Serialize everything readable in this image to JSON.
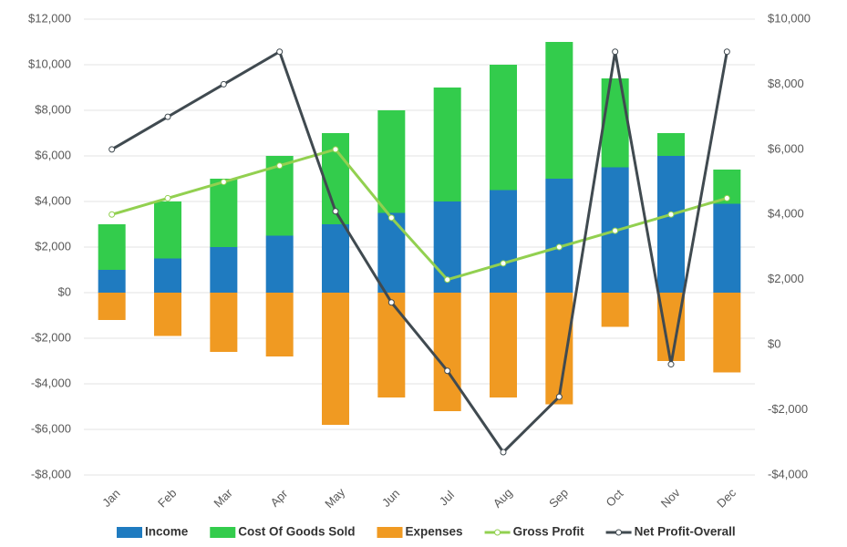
{
  "chart_data": {
    "type": "bar",
    "categories": [
      "Jan",
      "Feb",
      "Mar",
      "Apr",
      "May",
      "Jun",
      "Jul",
      "Aug",
      "Sep",
      "Oct",
      "Nov",
      "Dec"
    ],
    "series": [
      {
        "name": "Income",
        "type": "bar",
        "color": "#1f7bc0",
        "values": [
          1000,
          1500,
          2000,
          2500,
          3000,
          3500,
          4000,
          4500,
          5000,
          5500,
          6000,
          3900
        ]
      },
      {
        "name": "Cost Of Goods Sold",
        "type": "bar",
        "color": "#33cc4c",
        "values": [
          2000,
          2500,
          3000,
          3500,
          4000,
          4500,
          5000,
          5500,
          6000,
          3900,
          1000,
          1500
        ]
      },
      {
        "name": "Expenses",
        "type": "bar",
        "color": "#f09a22",
        "values": [
          -1200,
          -1900,
          -2600,
          -2800,
          -5800,
          -4600,
          -5200,
          -4600,
          -4900,
          -1500,
          -3000,
          -3500
        ]
      },
      {
        "name": "Gross Profit",
        "type": "line",
        "axis": "y2",
        "color": "#92d050",
        "values": [
          4000,
          4500,
          5000,
          5500,
          6000,
          3900,
          2000,
          2500,
          3000,
          3500,
          4000,
          4500
        ]
      },
      {
        "name": "Net Profit-Overall",
        "type": "line",
        "axis": "y2",
        "color": "#404a50",
        "values": [
          6000,
          7000,
          8000,
          9000,
          4100,
          1300,
          -800,
          -3300,
          -1600,
          9000,
          -600,
          9000
        ]
      }
    ],
    "ylim": [
      -8000,
      12000
    ],
    "yticks": [
      {
        "value": -8000,
        "label": "-$8,000"
      },
      {
        "value": -6000,
        "label": "-$6,000"
      },
      {
        "value": -4000,
        "label": "-$4,000"
      },
      {
        "value": -2000,
        "label": "-$2,000"
      },
      {
        "value": 0,
        "label": "$0"
      },
      {
        "value": 2000,
        "label": "$2,000"
      },
      {
        "value": 4000,
        "label": "$4,000"
      },
      {
        "value": 6000,
        "label": "$6,000"
      },
      {
        "value": 8000,
        "label": "$8,000"
      },
      {
        "value": 10000,
        "label": "$10,000"
      },
      {
        "value": 12000,
        "label": "$12,000"
      }
    ],
    "y2lim": [
      -4000,
      10000
    ],
    "y2ticks": [
      {
        "value": -4000,
        "label": "-$4,000"
      },
      {
        "value": -2000,
        "label": "-$2,000"
      },
      {
        "value": 0,
        "label": "$0"
      },
      {
        "value": 2000,
        "label": "$2,000"
      },
      {
        "value": 4000,
        "label": "$4,000"
      },
      {
        "value": 6000,
        "label": "$6,000"
      },
      {
        "value": 8000,
        "label": "$8,000"
      },
      {
        "value": 10000,
        "label": "$10,000"
      }
    ],
    "grid": true,
    "legend": "bottom"
  }
}
